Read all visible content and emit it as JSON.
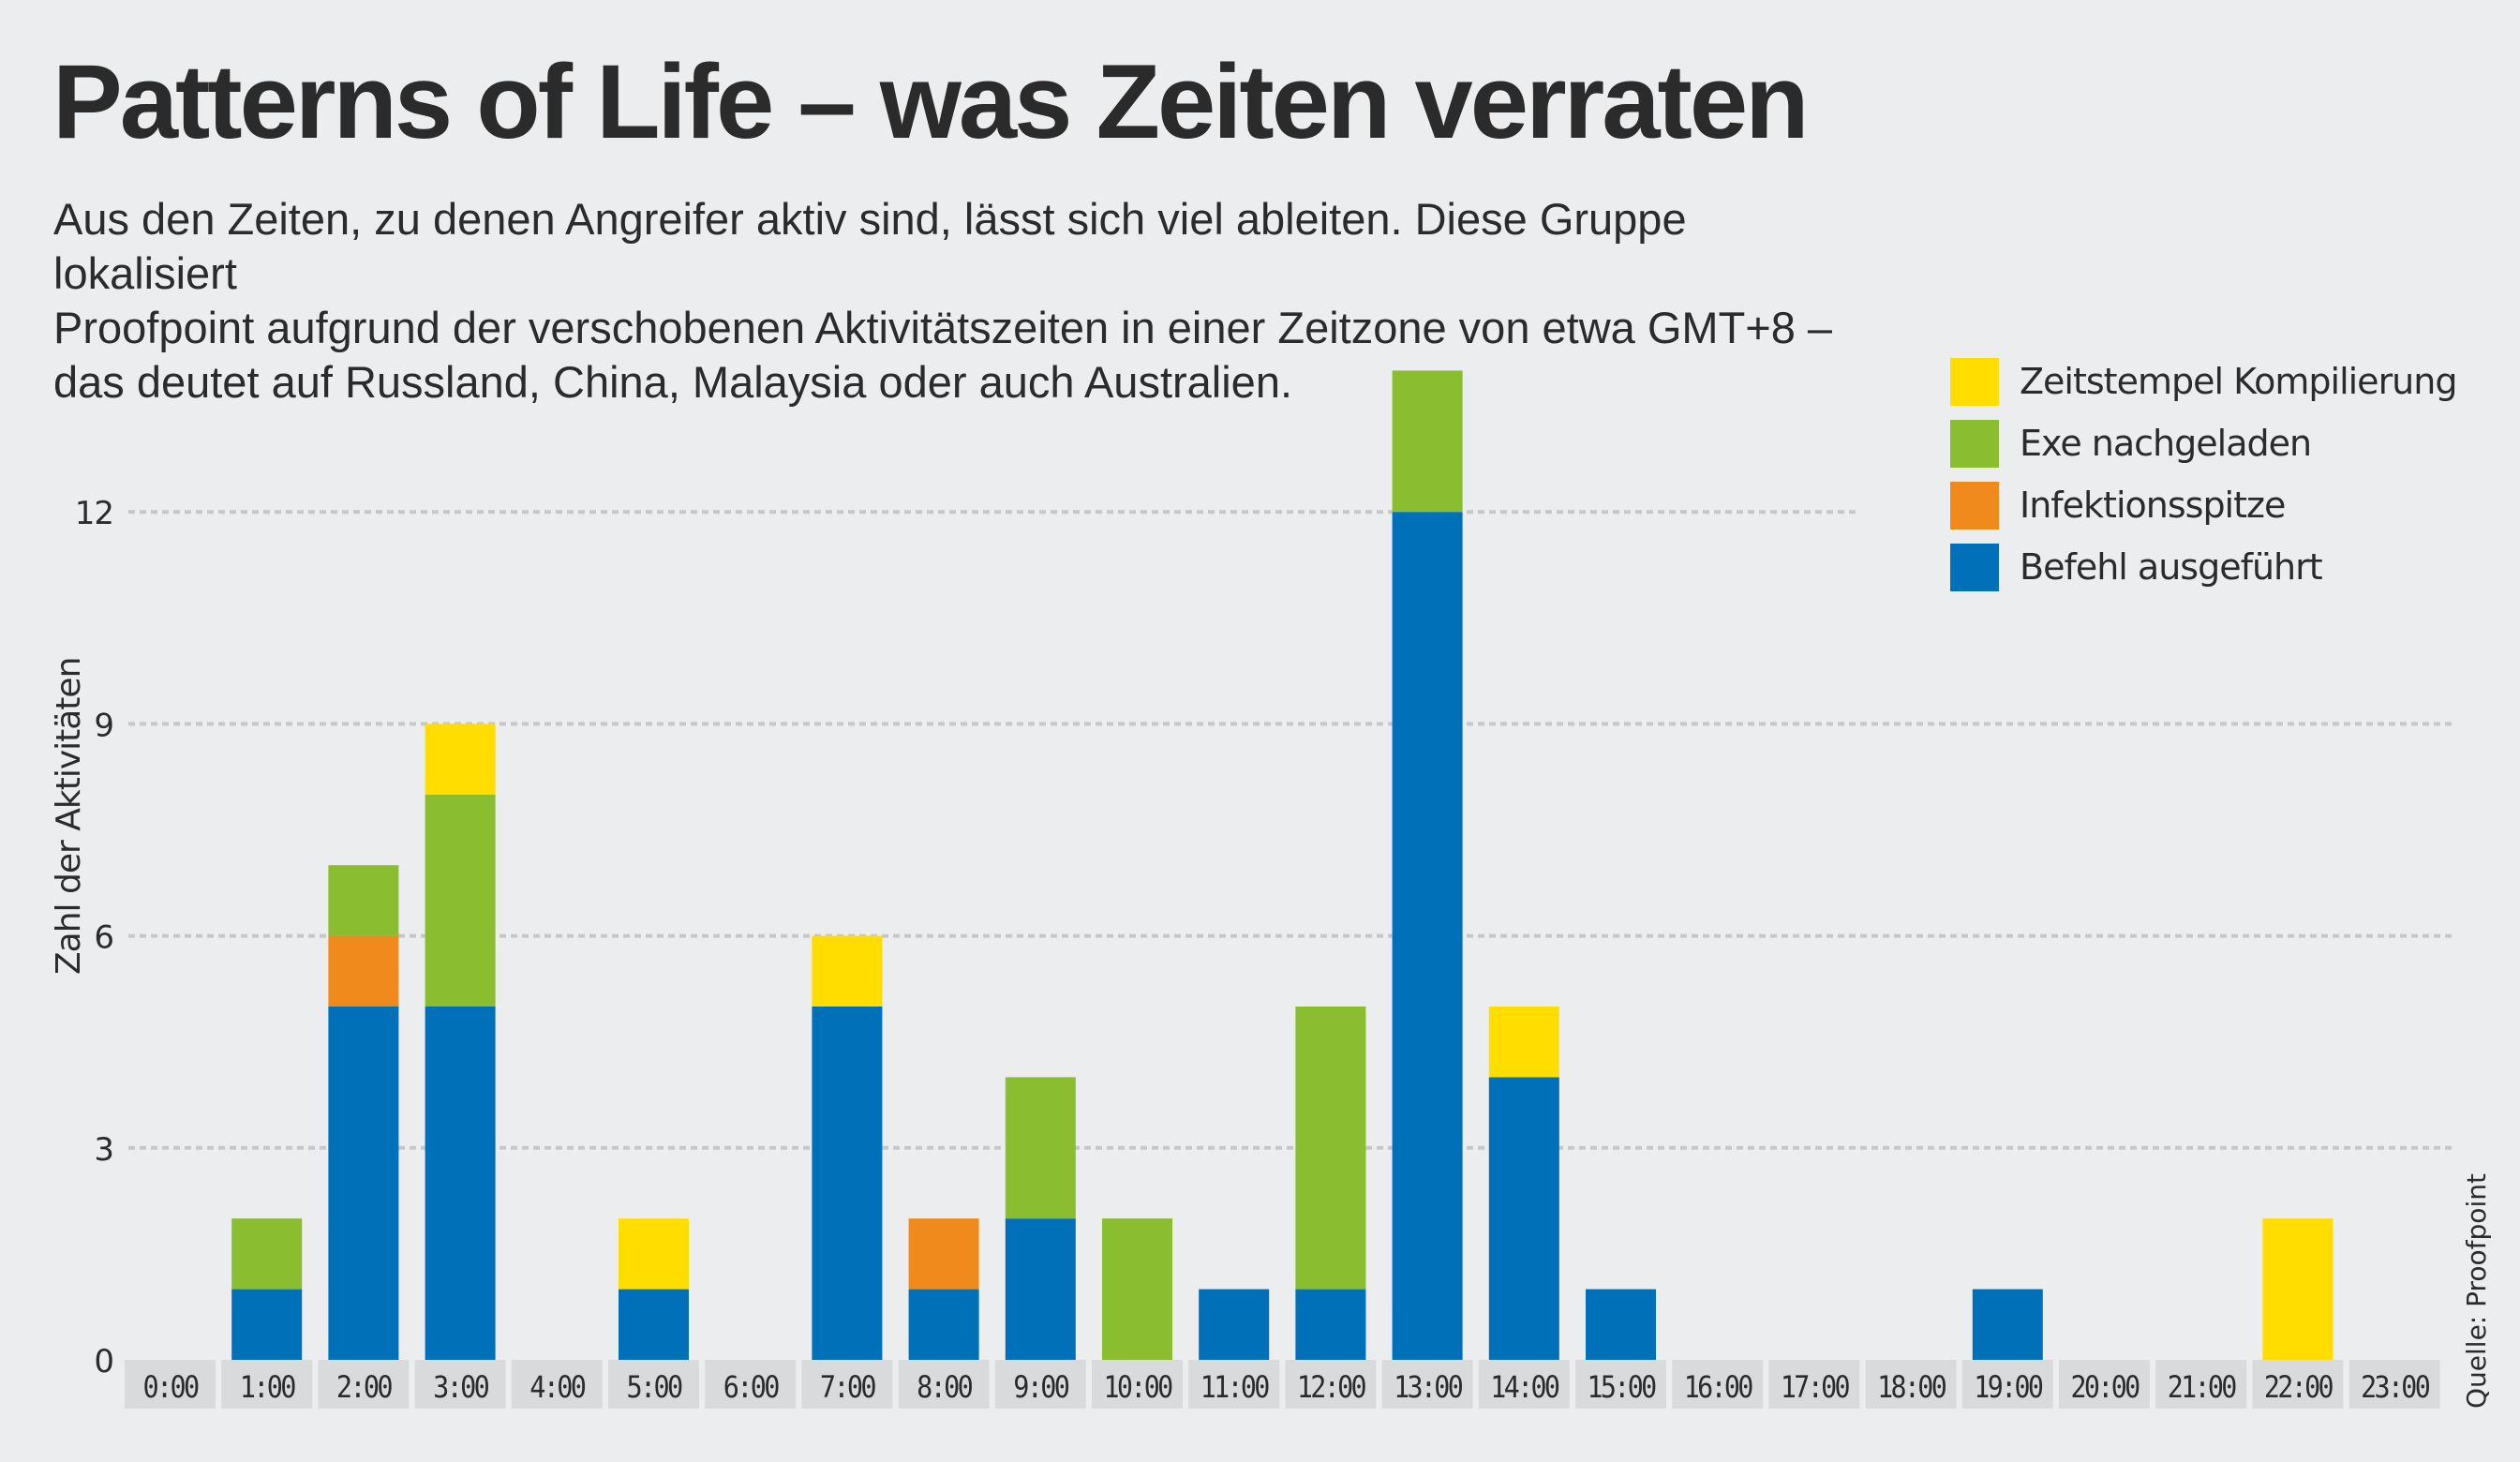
{
  "header": {
    "title": "Patterns of Life – was Zeiten verraten",
    "subtitle": "Aus den Zeiten, zu denen Angreifer aktiv sind, lässt sich viel ableiten. Diese Gruppe lokalisiert\nProofpoint aufgrund der verschobenen Aktivitätszeiten in einer Zeitzone von etwa GMT+8 –\ndas deutet auf Russland, China, Malaysia oder auch Australien."
  },
  "source": "Quelle: Proofpoint",
  "colors": {
    "background": "#ecedef",
    "text": "#2b2b2b",
    "label_box": "#d9dadc",
    "gridline": "#c6c7c9"
  },
  "chart_data": {
    "type": "bar",
    "stacked": true,
    "title": "Patterns of Life – was Zeiten verraten",
    "xlabel": "",
    "ylabel": "Zahl der Aktivitäten",
    "ylim": [
      0,
      14
    ],
    "yticks": [
      0,
      3,
      6,
      9,
      12
    ],
    "grid": true,
    "legend_position": "top-right",
    "categories": [
      "0:00",
      "1:00",
      "2:00",
      "3:00",
      "4:00",
      "5:00",
      "6:00",
      "7:00",
      "8:00",
      "9:00",
      "10:00",
      "11:00",
      "12:00",
      "13:00",
      "14:00",
      "15:00",
      "16:00",
      "17:00",
      "18:00",
      "19:00",
      "20:00",
      "21:00",
      "22:00",
      "23:00"
    ],
    "series": [
      {
        "name": "Befehl ausgeführt",
        "color": "#0070b8",
        "values": [
          0,
          1,
          5,
          5,
          0,
          1,
          0,
          5,
          1,
          2,
          0,
          1,
          1,
          12,
          4,
          1,
          0,
          0,
          0,
          1,
          0,
          0,
          0,
          0
        ]
      },
      {
        "name": "Infektionsspitze",
        "color": "#f18a1c",
        "values": [
          0,
          0,
          1,
          0,
          0,
          0,
          0,
          0,
          1,
          0,
          0,
          0,
          0,
          0,
          0,
          0,
          0,
          0,
          0,
          0,
          0,
          0,
          0,
          0
        ]
      },
      {
        "name": "Exe nachgeladen",
        "color": "#8bbd31",
        "values": [
          0,
          1,
          1,
          3,
          0,
          0,
          0,
          0,
          0,
          2,
          2,
          0,
          4,
          2,
          0,
          0,
          0,
          0,
          0,
          0,
          0,
          0,
          0,
          0
        ]
      },
      {
        "name": "Zeitstempel Kompilierung",
        "color": "#ffdd00",
        "values": [
          0,
          0,
          0,
          1,
          0,
          1,
          0,
          1,
          0,
          0,
          0,
          0,
          0,
          0,
          1,
          0,
          0,
          0,
          0,
          0,
          0,
          0,
          2,
          0
        ]
      }
    ],
    "legend_order": [
      "Zeitstempel Kompilierung",
      "Exe nachgeladen",
      "Infektionsspitze",
      "Befehl ausgeführt"
    ]
  }
}
